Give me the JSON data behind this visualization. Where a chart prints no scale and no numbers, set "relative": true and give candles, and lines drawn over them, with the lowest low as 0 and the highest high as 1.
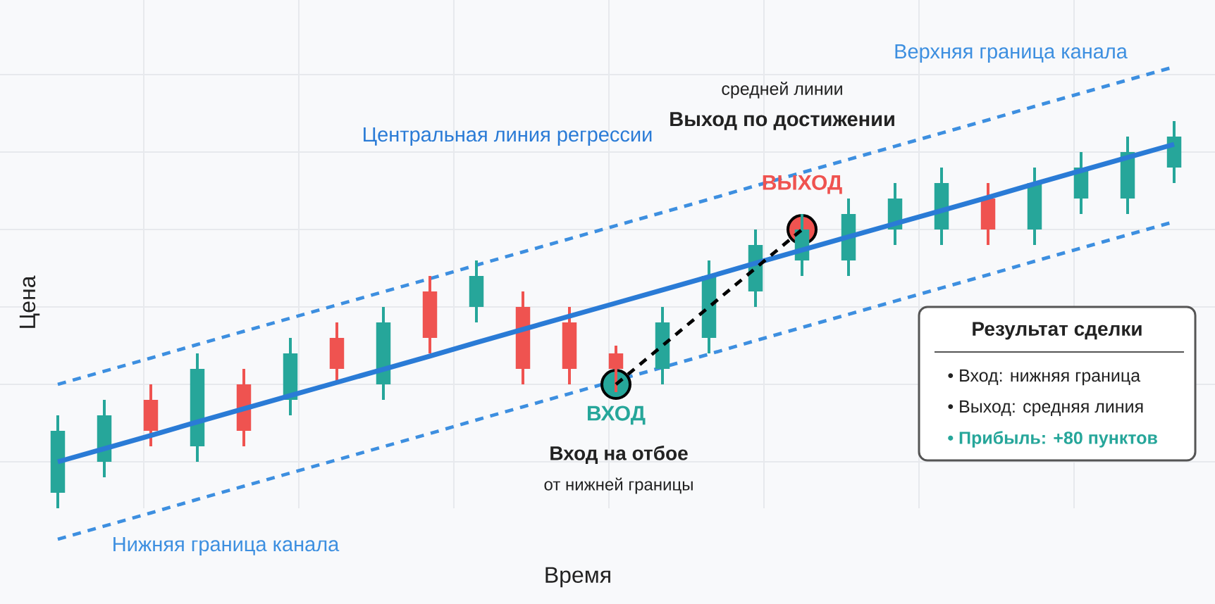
{
  "chart_data": {
    "type": "candlestick",
    "xlabel": "Время",
    "ylabel": "Цена",
    "relative": true,
    "grid": true,
    "categories": [
      null,
      null,
      null,
      null,
      null,
      null,
      null,
      null,
      null,
      null,
      null,
      null,
      null,
      null,
      null,
      null,
      null,
      null,
      null,
      null,
      null,
      null,
      null,
      null,
      null
    ],
    "ohlc": [
      [
        0.04,
        0.24,
        0,
        0.2
      ],
      [
        0.12,
        0.28,
        0.08,
        0.24
      ],
      [
        0.28,
        0.32,
        0.16,
        0.2
      ],
      [
        0.16,
        0.4,
        0.12,
        0.36
      ],
      [
        0.32,
        0.36,
        0.16,
        0.2
      ],
      [
        0.28,
        0.44,
        0.24,
        0.4
      ],
      [
        0.44,
        0.48,
        0.32,
        0.36
      ],
      [
        0.32,
        0.52,
        0.28,
        0.48
      ],
      [
        0.56,
        0.6,
        0.4,
        0.44
      ],
      [
        0.52,
        0.64,
        0.48,
        0.6
      ],
      [
        0.52,
        0.56,
        0.32,
        0.36
      ],
      [
        0.48,
        0.52,
        0.32,
        0.36
      ],
      [
        0.4,
        0.42,
        0.3,
        0.36
      ],
      [
        0.36,
        0.52,
        0.32,
        0.48
      ],
      [
        0.44,
        0.64,
        0.4,
        0.6
      ],
      [
        0.56,
        0.72,
        0.52,
        0.68
      ],
      [
        0.64,
        0.76,
        0.6,
        0.72
      ],
      [
        0.64,
        0.8,
        0.6,
        0.76
      ],
      [
        0.72,
        0.84,
        0.68,
        0.8
      ],
      [
        0.72,
        0.88,
        0.68,
        0.84
      ],
      [
        0.8,
        0.84,
        0.68,
        0.72
      ],
      [
        0.72,
        0.88,
        0.68,
        0.84
      ],
      [
        0.8,
        0.92,
        0.76,
        0.88
      ],
      [
        0.8,
        0.96,
        0.76,
        0.92
      ],
      [
        0.88,
        1,
        0.84,
        0.96
      ]
    ],
    "colors": [
      "#26a69a",
      "#26a69a",
      "#ef5350",
      "#26a69a",
      "#ef5350",
      "#26a69a",
      "#ef5350",
      "#26a69a",
      "#ef5350",
      "#26a69a",
      "#ef5350",
      "#ef5350",
      "#ef5350",
      "#26a69a",
      "#26a69a",
      "#26a69a",
      "#26a69a",
      "#26a69a",
      "#26a69a",
      "#26a69a",
      "#ef5350",
      "#26a69a",
      "#26a69a",
      "#26a69a",
      "#26a69a"
    ],
    "series": [
      {
        "name": "Верхняя граница канала",
        "type": "line",
        "color": "#3d8fe0",
        "line_style": "dashed",
        "values": [
          0.32,
          0.354,
          0.388,
          0.423,
          0.457,
          0.491,
          0.525,
          0.559,
          0.593,
          0.628,
          0.662,
          0.696,
          0.73,
          0.764,
          0.798,
          0.833,
          0.867,
          0.901,
          0.935,
          0.969,
          1.003,
          1.038,
          1.072,
          1.106,
          1.14
        ]
      },
      {
        "name": "Центральная линия регрессии",
        "type": "line",
        "color": "#2a7bd6",
        "line_style": "solid",
        "values": [
          0.12,
          0.154,
          0.188,
          0.223,
          0.257,
          0.291,
          0.325,
          0.359,
          0.393,
          0.428,
          0.462,
          0.496,
          0.53,
          0.564,
          0.598,
          0.633,
          0.667,
          0.701,
          0.735,
          0.769,
          0.803,
          0.838,
          0.872,
          0.906,
          0.94
        ]
      },
      {
        "name": "Нижняя граница канала",
        "type": "line",
        "color": "#3d8fe0",
        "line_style": "dashed",
        "values": [
          -0.08,
          -0.046,
          -0.012,
          0.023,
          0.057,
          0.091,
          0.125,
          0.159,
          0.193,
          0.228,
          0.262,
          0.296,
          0.33,
          0.364,
          0.398,
          0.433,
          0.467,
          0.501,
          0.535,
          0.569,
          0.603,
          0.638,
          0.672,
          0.706,
          0.74
        ]
      },
      {
        "type": "line",
        "color": "#000000",
        "line_style": "dashed",
        "values": [
          null,
          null,
          null,
          null,
          null,
          null,
          null,
          null,
          null,
          null,
          null,
          null,
          0.32,
          0.42,
          0.52,
          0.62,
          0.72,
          null,
          null,
          null,
          null,
          null,
          null,
          null,
          null
        ]
      },
      {
        "name": "ВХОД",
        "type": "scatter",
        "color": "#26a69a",
        "marker": "circle",
        "values": [
          null,
          null,
          null,
          null,
          null,
          null,
          null,
          null,
          null,
          null,
          null,
          null,
          0.32,
          null,
          null,
          null,
          null,
          null,
          null,
          null,
          null,
          null,
          null,
          null,
          null
        ]
      },
      {
        "name": "ВЫХОД",
        "type": "scatter",
        "color": "#ef5350",
        "marker": "circle",
        "values": [
          null,
          null,
          null,
          null,
          null,
          null,
          null,
          null,
          null,
          null,
          null,
          null,
          null,
          null,
          null,
          null,
          0.72,
          null,
          null,
          null,
          null,
          null,
          null,
          null,
          null
        ]
      }
    ],
    "annotations": [
      "средней линии",
      "Выход по достижении",
      "Вход на отбое",
      "от нижней границы",
      "Результат сделки",
      "• Вход: нижняя граница",
      "• Выход: средняя линия",
      "• Прибыль: +80 пунктов"
    ]
  }
}
